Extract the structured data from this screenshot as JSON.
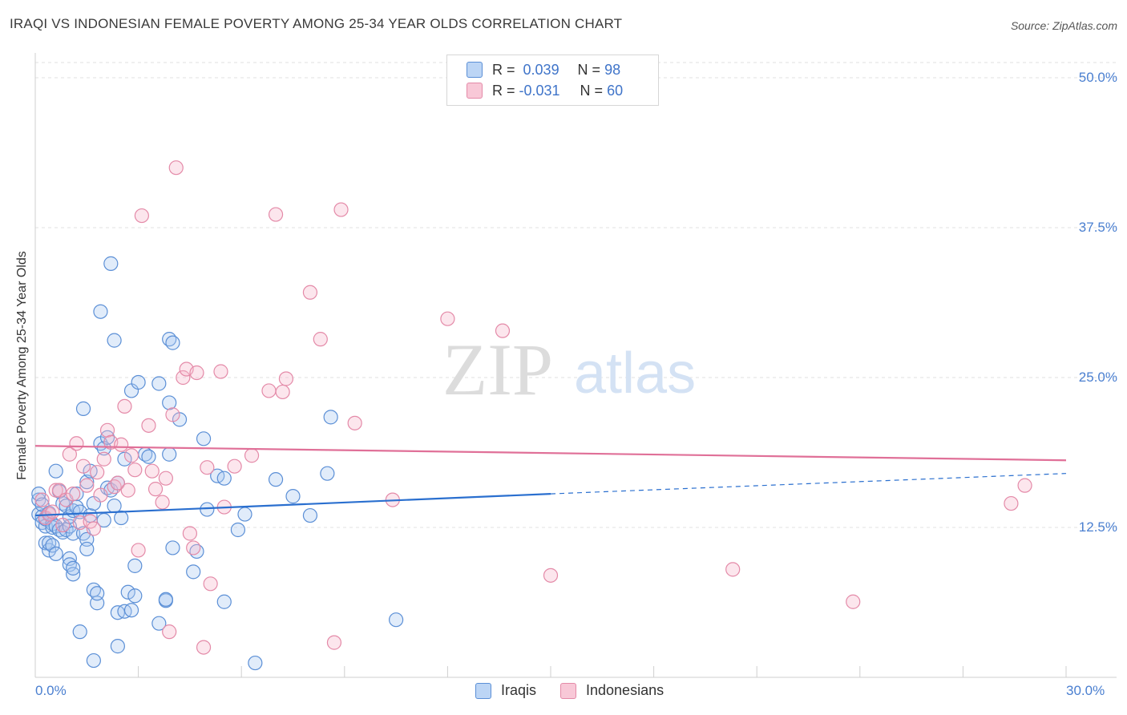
{
  "header": {
    "title": "IRAQI VS INDONESIAN FEMALE POVERTY AMONG 25-34 YEAR OLDS CORRELATION CHART",
    "source": "Source: ZipAtlas.com"
  },
  "colors": {
    "iraqis_fill": "#a8c8f0",
    "iraqis_stroke": "#5b8fd6",
    "iraqis_line": "#2a6fcf",
    "indonesians_fill": "#f5b8cb",
    "indonesians_stroke": "#e48aa8",
    "indonesians_line": "#e07098",
    "tick_label": "#4a7fd0"
  },
  "legend": {
    "rows": [
      {
        "r_label": "R =",
        "r_value": "0.039",
        "n_label": "N =",
        "n_value": "98"
      },
      {
        "r_label": "R =",
        "r_value": "-0.031",
        "n_label": "N =",
        "n_value": "60"
      }
    ]
  },
  "bottom_legend": {
    "iraqis": "Iraqis",
    "indonesians": "Indonesians"
  },
  "watermark": {
    "zip": "ZIP",
    "atlas": "atlas"
  },
  "chart_data": {
    "type": "scatter",
    "title": "IRAQI VS INDONESIAN FEMALE POVERTY AMONG 25-34 YEAR OLDS CORRELATION CHART",
    "xlabel": "",
    "ylabel": "Female Poverty Among 25-34 Year Olds",
    "xlim": [
      0,
      30
    ],
    "ylim": [
      0,
      50
    ],
    "x_tick_labels": [
      "0.0%",
      "30.0%"
    ],
    "y_ticks": [
      12.5,
      25.0,
      37.5,
      50.0
    ],
    "y_tick_labels": [
      "12.5%",
      "25.0%",
      "37.5%",
      "50.0%"
    ],
    "grid": true,
    "series": [
      {
        "name": "Iraqis",
        "r": 0.039,
        "n": 98,
        "trend": {
          "x": [
            0,
            15
          ],
          "y": [
            13.5,
            15.3
          ],
          "dashed_x": [
            15,
            30
          ],
          "dashed_y": [
            15.3,
            17.0
          ]
        },
        "points": [
          [
            0.1,
            13.6
          ],
          [
            0.1,
            14.8
          ],
          [
            0.1,
            15.3
          ],
          [
            0.2,
            13.4
          ],
          [
            0.2,
            14.4
          ],
          [
            0.2,
            12.9
          ],
          [
            0.3,
            12.6
          ],
          [
            0.3,
            13.2
          ],
          [
            0.3,
            11.2
          ],
          [
            0.4,
            13.7
          ],
          [
            0.4,
            10.6
          ],
          [
            0.4,
            11.2
          ],
          [
            0.5,
            12.8
          ],
          [
            0.5,
            12.5
          ],
          [
            0.5,
            11.0
          ],
          [
            0.6,
            10.3
          ],
          [
            0.6,
            12.6
          ],
          [
            0.6,
            17.2
          ],
          [
            0.7,
            15.5
          ],
          [
            0.7,
            12.3
          ],
          [
            0.8,
            12.1
          ],
          [
            0.8,
            14.5
          ],
          [
            0.9,
            12.3
          ],
          [
            0.9,
            14.3
          ],
          [
            1.0,
            9.9
          ],
          [
            1.0,
            9.4
          ],
          [
            1.0,
            12.6
          ],
          [
            1.0,
            13.4
          ],
          [
            1.1,
            8.6
          ],
          [
            1.1,
            9.1
          ],
          [
            1.1,
            12.0
          ],
          [
            1.1,
            13.9
          ],
          [
            1.2,
            15.3
          ],
          [
            1.2,
            14.2
          ],
          [
            1.3,
            3.8
          ],
          [
            1.3,
            13.8
          ],
          [
            1.4,
            22.4
          ],
          [
            1.4,
            12.0
          ],
          [
            1.5,
            11.5
          ],
          [
            1.5,
            10.7
          ],
          [
            1.5,
            16.3
          ],
          [
            1.6,
            17.2
          ],
          [
            1.6,
            13.5
          ],
          [
            1.7,
            7.3
          ],
          [
            1.7,
            1.4
          ],
          [
            1.7,
            14.5
          ],
          [
            1.8,
            6.2
          ],
          [
            1.8,
            7.0
          ],
          [
            1.9,
            19.5
          ],
          [
            1.9,
            30.5
          ],
          [
            2.0,
            19.1
          ],
          [
            2.0,
            13.1
          ],
          [
            2.1,
            20.0
          ],
          [
            2.1,
            15.8
          ],
          [
            2.2,
            15.6
          ],
          [
            2.2,
            34.5
          ],
          [
            2.3,
            14.3
          ],
          [
            2.3,
            28.1
          ],
          [
            2.4,
            16.2
          ],
          [
            2.4,
            5.4
          ],
          [
            2.4,
            2.6
          ],
          [
            2.5,
            13.3
          ],
          [
            2.6,
            5.5
          ],
          [
            2.6,
            18.2
          ],
          [
            2.7,
            7.1
          ],
          [
            2.8,
            5.6
          ],
          [
            2.8,
            23.9
          ],
          [
            2.9,
            9.3
          ],
          [
            2.9,
            6.8
          ],
          [
            3.0,
            24.6
          ],
          [
            3.2,
            18.6
          ],
          [
            3.3,
            18.4
          ],
          [
            3.6,
            4.5
          ],
          [
            3.6,
            24.5
          ],
          [
            3.8,
            6.4
          ],
          [
            3.8,
            6.5
          ],
          [
            3.9,
            18.6
          ],
          [
            3.9,
            22.9
          ],
          [
            3.9,
            28.2
          ],
          [
            4.0,
            27.9
          ],
          [
            4.0,
            10.8
          ],
          [
            4.2,
            21.5
          ],
          [
            4.6,
            8.8
          ],
          [
            4.7,
            10.5
          ],
          [
            4.9,
            19.9
          ],
          [
            5.0,
            14.0
          ],
          [
            5.3,
            16.8
          ],
          [
            5.5,
            16.6
          ],
          [
            5.5,
            6.3
          ],
          [
            5.9,
            12.3
          ],
          [
            6.1,
            13.6
          ],
          [
            6.4,
            1.2
          ],
          [
            7.0,
            16.5
          ],
          [
            7.5,
            15.1
          ],
          [
            8.0,
            13.5
          ],
          [
            8.5,
            17.0
          ],
          [
            8.6,
            21.7
          ],
          [
            10.5,
            4.8
          ]
        ]
      },
      {
        "name": "Indonesians",
        "r": -0.031,
        "n": 60,
        "trend": {
          "x": [
            0,
            30
          ],
          "y": [
            19.3,
            18.1
          ]
        },
        "points": [
          [
            0.2,
            14.8
          ],
          [
            0.3,
            13.3
          ],
          [
            0.4,
            13.6
          ],
          [
            0.5,
            13.8
          ],
          [
            0.6,
            15.6
          ],
          [
            0.7,
            15.6
          ],
          [
            0.8,
            12.7
          ],
          [
            0.9,
            14.8
          ],
          [
            1.0,
            18.6
          ],
          [
            1.1,
            15.3
          ],
          [
            1.2,
            19.5
          ],
          [
            1.3,
            12.9
          ],
          [
            1.4,
            17.6
          ],
          [
            1.5,
            16.0
          ],
          [
            1.6,
            13.0
          ],
          [
            1.7,
            12.4
          ],
          [
            1.8,
            17.1
          ],
          [
            1.9,
            15.2
          ],
          [
            2.0,
            18.2
          ],
          [
            2.1,
            20.6
          ],
          [
            2.2,
            19.6
          ],
          [
            2.3,
            15.9
          ],
          [
            2.4,
            16.2
          ],
          [
            2.5,
            19.4
          ],
          [
            2.6,
            22.6
          ],
          [
            2.7,
            15.6
          ],
          [
            2.8,
            18.5
          ],
          [
            2.9,
            17.3
          ],
          [
            3.0,
            10.6
          ],
          [
            3.1,
            38.5
          ],
          [
            3.3,
            21.0
          ],
          [
            3.4,
            17.2
          ],
          [
            3.5,
            15.7
          ],
          [
            3.7,
            14.6
          ],
          [
            3.8,
            16.6
          ],
          [
            3.9,
            3.8
          ],
          [
            4.0,
            21.9
          ],
          [
            4.1,
            42.5
          ],
          [
            4.3,
            25.0
          ],
          [
            4.4,
            25.7
          ],
          [
            4.5,
            12.0
          ],
          [
            4.6,
            10.8
          ],
          [
            4.7,
            25.4
          ],
          [
            4.9,
            2.5
          ],
          [
            5.0,
            17.5
          ],
          [
            5.1,
            7.8
          ],
          [
            5.4,
            25.5
          ],
          [
            5.5,
            14.2
          ],
          [
            5.8,
            17.6
          ],
          [
            6.3,
            18.5
          ],
          [
            6.8,
            23.9
          ],
          [
            7.0,
            38.6
          ],
          [
            7.2,
            23.8
          ],
          [
            7.3,
            24.9
          ],
          [
            8.0,
            32.1
          ],
          [
            8.3,
            28.2
          ],
          [
            8.7,
            2.9
          ],
          [
            8.9,
            39.0
          ],
          [
            9.3,
            21.2
          ],
          [
            10.4,
            14.8
          ]
        ],
        "extra_points": [
          [
            12.0,
            29.9
          ],
          [
            13.6,
            28.9
          ],
          [
            15.0,
            8.5
          ],
          [
            20.3,
            9.0
          ],
          [
            23.8,
            6.3
          ],
          [
            28.4,
            14.5
          ],
          [
            28.8,
            16.0
          ]
        ]
      }
    ]
  }
}
